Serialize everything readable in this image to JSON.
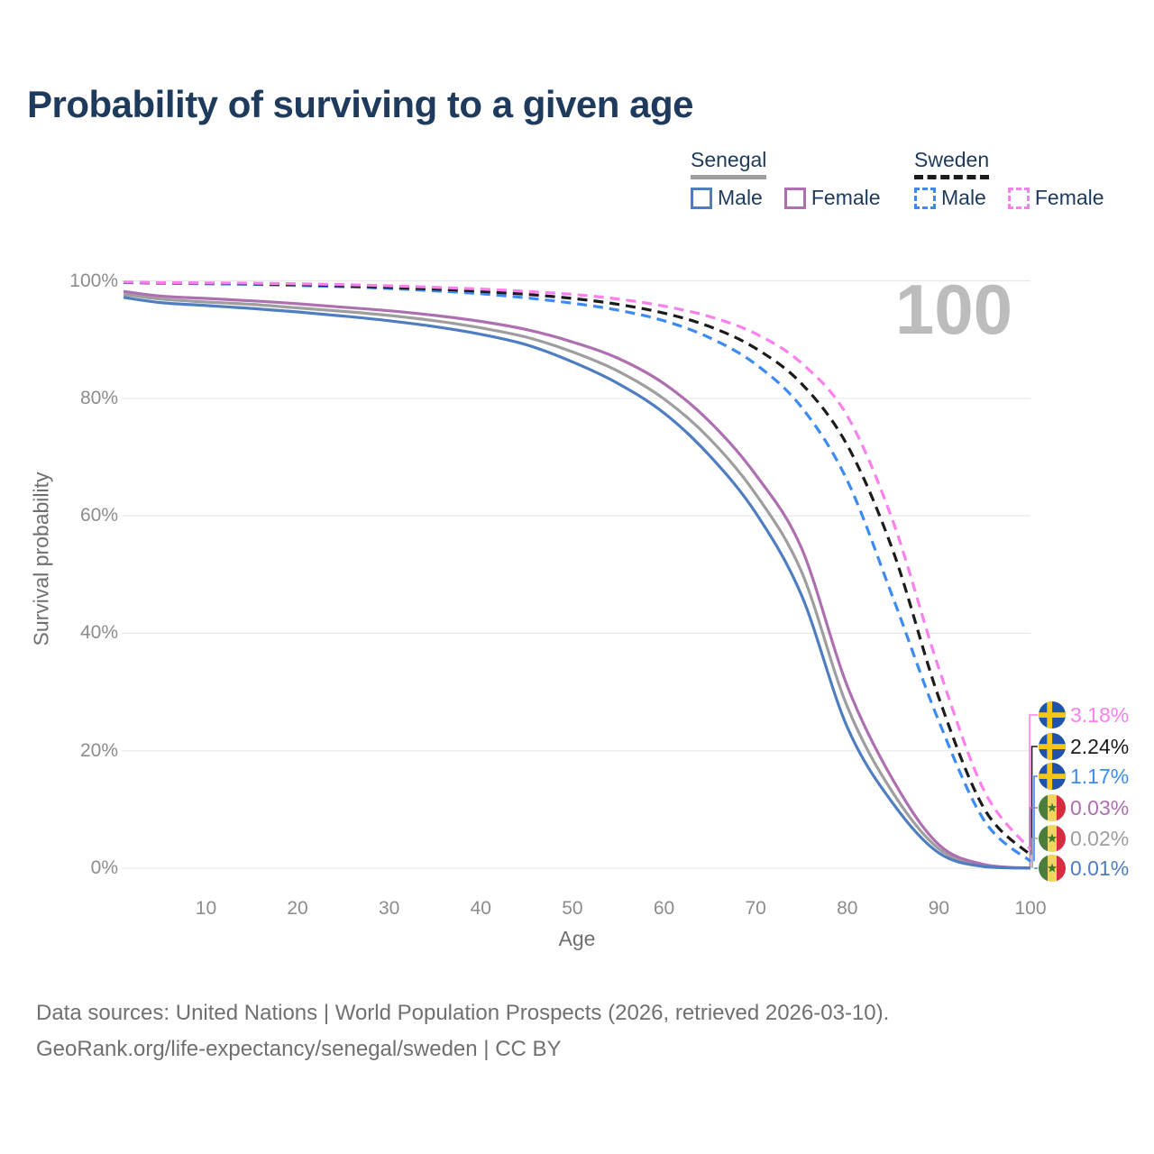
{
  "title": "Probability of surviving to a given age",
  "watermark_age": "100",
  "legend": {
    "groups": [
      {
        "country": "Senegal",
        "line_style": "solid-gray",
        "items": [
          {
            "label": "Male"
          },
          {
            "label": "Female"
          }
        ]
      },
      {
        "country": "Sweden",
        "line_style": "dashed-black",
        "items": [
          {
            "label": "Male"
          },
          {
            "label": "Female"
          }
        ]
      }
    ]
  },
  "axes": {
    "y": {
      "title": "Survival probability",
      "ticks": [
        "0%",
        "20%",
        "40%",
        "60%",
        "80%",
        "100%"
      ],
      "tick_values": [
        0,
        20,
        40,
        60,
        80,
        100
      ]
    },
    "x": {
      "title": "Age",
      "ticks": [
        "10",
        "20",
        "30",
        "40",
        "50",
        "60",
        "70",
        "80",
        "90",
        "100"
      ],
      "tick_values": [
        10,
        20,
        30,
        40,
        50,
        60,
        70,
        80,
        90,
        100
      ]
    }
  },
  "end_labels": [
    {
      "flag": "sweden",
      "value": "3.18%",
      "number": 3.18,
      "color": "#fb80ee",
      "series": "Sweden Female"
    },
    {
      "flag": "sweden",
      "value": "2.24%",
      "number": 2.24,
      "color": "#1b1b1b",
      "series": "Sweden Both"
    },
    {
      "flag": "sweden",
      "value": "1.17%",
      "number": 1.17,
      "color": "#3c8af5",
      "series": "Sweden Male"
    },
    {
      "flag": "senegal",
      "value": "0.03%",
      "number": 0.03,
      "color": "#ae6fb0",
      "series": "Senegal Female"
    },
    {
      "flag": "senegal",
      "value": "0.02%",
      "number": 0.02,
      "color": "#9e9e9e",
      "series": "Senegal Both"
    },
    {
      "flag": "senegal",
      "value": "0.01%",
      "number": 0.01,
      "color": "#4f7dc2",
      "series": "Senegal Male"
    }
  ],
  "footer": {
    "line1": "Data sources: United Nations | World Population Prospects (2026, retrieved 2026-03-10).",
    "line2": "GeoRank.org/life-expectancy/senegal/sweden | CC BY"
  },
  "colors": {
    "title": "#1e3a5c",
    "grid": "#e8e8e8",
    "tick_text": "#8c8c8c",
    "watermark": "#bcbcbc",
    "footer_text": "#707070",
    "senegal_male": "#4f7dc2",
    "senegal_female": "#ae6fb0",
    "senegal_both": "#9e9e9e",
    "sweden_male": "#3c8af5",
    "sweden_female": "#fb80ee",
    "sweden_both": "#1b1b1b"
  },
  "chart_data": {
    "type": "line",
    "title": "Probability of surviving to a given age",
    "xlabel": "Age",
    "ylabel": "Survival probability",
    "xlim": [
      1,
      100
    ],
    "ylim_percent": [
      0,
      100
    ],
    "grid": "horizontal",
    "x": [
      1,
      5,
      10,
      15,
      20,
      25,
      30,
      35,
      40,
      45,
      50,
      55,
      60,
      65,
      70,
      75,
      80,
      85,
      90,
      95,
      100
    ],
    "series": [
      {
        "name": "Senegal Both",
        "country": "Senegal",
        "sex": "both",
        "style": "solid",
        "color": "#9e9e9e",
        "values": [
          97.7,
          96.9,
          96.4,
          96.0,
          95.4,
          94.8,
          94.1,
          93.2,
          92.0,
          90.4,
          87.9,
          84.6,
          79.9,
          73.1,
          63.7,
          50.5,
          27.5,
          12.8,
          3.3,
          0.4,
          0.02
        ]
      },
      {
        "name": "Senegal Male",
        "country": "Senegal",
        "sex": "male",
        "style": "solid",
        "color": "#4f7dc2",
        "values": [
          97.2,
          96.3,
          95.8,
          95.3,
          94.7,
          94.0,
          93.2,
          92.2,
          90.9,
          89.1,
          86.2,
          82.5,
          77.5,
          70.2,
          60.5,
          46.5,
          24.0,
          11.0,
          2.6,
          0.25,
          0.01
        ]
      },
      {
        "name": "Senegal Female",
        "country": "Senegal",
        "sex": "female",
        "style": "solid",
        "color": "#ae6fb0",
        "values": [
          98.2,
          97.4,
          97.0,
          96.6,
          96.1,
          95.5,
          94.9,
          94.1,
          93.1,
          91.7,
          89.6,
          86.8,
          82.5,
          76.0,
          67.0,
          54.5,
          31.0,
          15.0,
          4.0,
          0.6,
          0.03
        ]
      },
      {
        "name": "Sweden Male",
        "country": "Sweden",
        "sex": "male",
        "style": "dashed",
        "color": "#3c8af5",
        "values": [
          99.7,
          99.6,
          99.5,
          99.4,
          99.2,
          99.0,
          98.7,
          98.3,
          97.8,
          97.1,
          96.2,
          95.0,
          93.2,
          90.3,
          85.8,
          78.5,
          66.0,
          46.0,
          25.0,
          8.0,
          1.17
        ]
      },
      {
        "name": "Sweden Both",
        "country": "Sweden",
        "sex": "both",
        "style": "dashed",
        "color": "#1b1b1b",
        "values": [
          99.75,
          99.65,
          99.6,
          99.5,
          99.35,
          99.15,
          98.9,
          98.6,
          98.2,
          97.7,
          97.0,
          96.0,
          94.5,
          92.2,
          88.5,
          82.5,
          72.0,
          54.0,
          29.0,
          10.0,
          2.24
        ]
      },
      {
        "name": "Sweden Female",
        "country": "Sweden",
        "sex": "female",
        "style": "dashed",
        "color": "#fb80ee",
        "values": [
          99.8,
          99.7,
          99.65,
          99.6,
          99.5,
          99.35,
          99.15,
          98.9,
          98.6,
          98.2,
          97.7,
          96.9,
          95.7,
          93.9,
          91.0,
          86.0,
          77.0,
          59.0,
          34.0,
          13.0,
          3.18
        ]
      }
    ]
  }
}
